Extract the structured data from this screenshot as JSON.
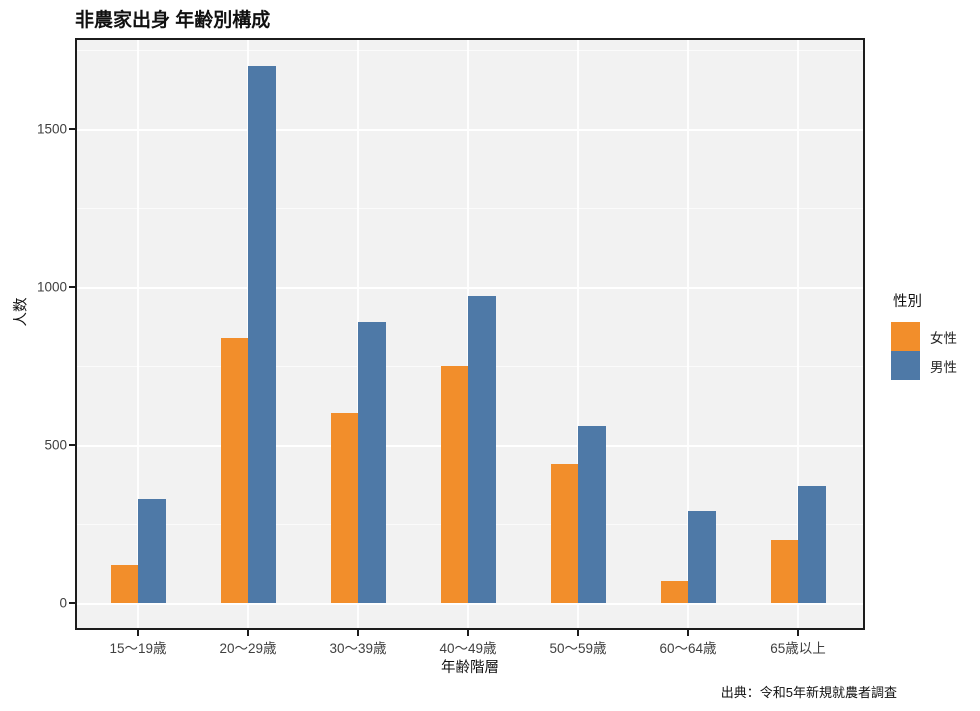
{
  "chart_data": {
    "type": "bar",
    "title": "非農家出身 年齢別構成",
    "xlabel": "年齢階層",
    "ylabel": "人数",
    "caption": "出典：令和5年新規就農者調査",
    "categories": [
      "15〜19歳",
      "20〜29歳",
      "30〜39歳",
      "40〜49歳",
      "50〜59歳",
      "60〜64歳",
      "65歳以上"
    ],
    "series": [
      {
        "name": "女性",
        "key": "female",
        "color": "#F28E2B",
        "values": [
          120,
          840,
          600,
          750,
          440,
          70,
          200
        ]
      },
      {
        "name": "男性",
        "key": "male",
        "color": "#4E79A7",
        "values": [
          330,
          1700,
          890,
          970,
          560,
          290,
          370
        ]
      }
    ],
    "legend": {
      "title": "性別",
      "position": "right"
    },
    "y_axis": {
      "tick_labels": [
        "0",
        "500",
        "1000",
        "1500"
      ],
      "major_ticks": [
        0,
        500,
        1000,
        1500
      ],
      "minor_ticks": [
        250,
        750,
        1250,
        1750
      ],
      "ylim": [
        -85,
        1790
      ]
    },
    "style": {
      "panel_background": "#F2F2F2",
      "gridline_color": "#FFFFFF",
      "border_color": "#1C1C1C",
      "grid": "major+minor horizontal, major vertical per category"
    }
  }
}
